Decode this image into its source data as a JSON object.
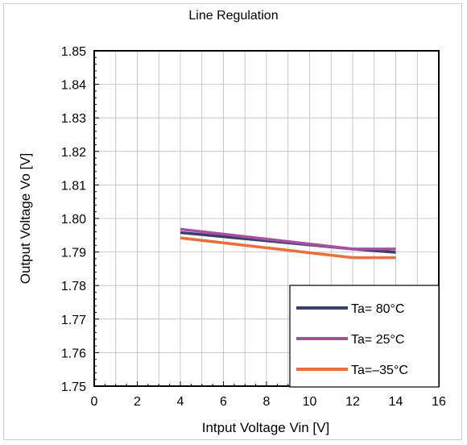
{
  "chart_data": {
    "type": "line",
    "title": "Line Regulation",
    "xlabel": "Intput Voltage Vin [V]",
    "ylabel": "Output Voltage Vo [V]",
    "xlim": [
      0,
      16
    ],
    "ylim": [
      1.75,
      1.85
    ],
    "x_ticks": [
      "0",
      "2",
      "4",
      "6",
      "8",
      "10",
      "12",
      "14",
      "16"
    ],
    "y_ticks": [
      "1.75",
      "1.76",
      "1.77",
      "1.78",
      "1.79",
      "1.80",
      "1.81",
      "1.82",
      "1.83",
      "1.84",
      "1.85"
    ],
    "grid": true,
    "legend_position": "bottom-right",
    "series": [
      {
        "name": "Ta=  80°C",
        "color": "#3a3f68",
        "x": [
          4,
          12,
          14
        ],
        "y": [
          1.7958,
          1.7909,
          1.7899
        ]
      },
      {
        "name": "Ta=  25°C",
        "color": "#a550a0",
        "x": [
          4,
          12,
          14
        ],
        "y": [
          1.7968,
          1.7909,
          1.7909
        ]
      },
      {
        "name": "Ta=–35°C",
        "color": "#e8703a",
        "x": [
          4,
          12,
          14
        ],
        "y": [
          1.7942,
          1.7883,
          1.7883
        ]
      }
    ]
  }
}
